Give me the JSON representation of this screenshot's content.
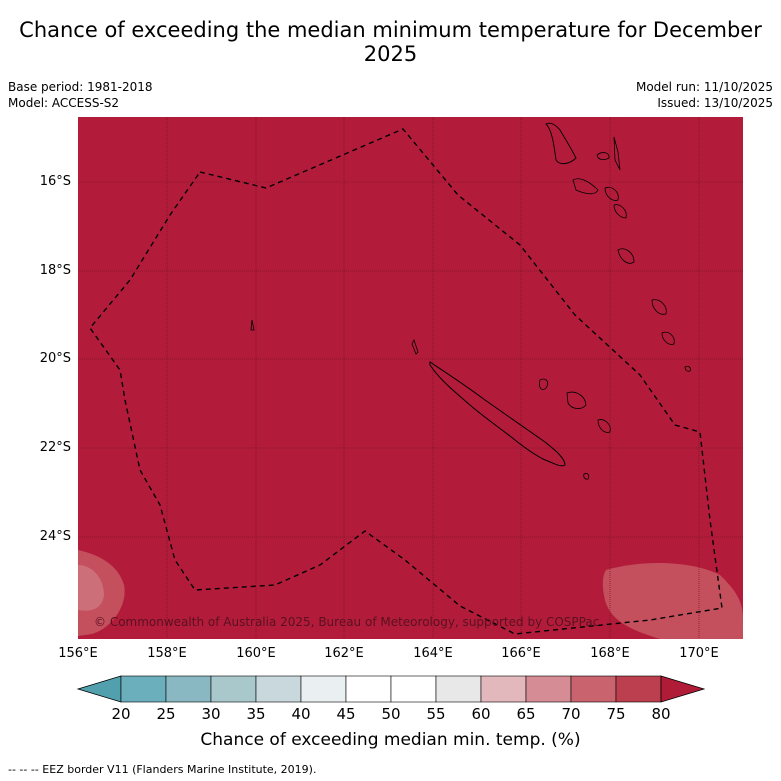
{
  "title": "Chance of exceeding the median minimum temperature for December 2025",
  "base_period": "Base period: 1981-2018",
  "model": "Model: ACCESS-S2",
  "model_run": "Model run: 11/10/2025",
  "issued": "Issued: 13/10/2025",
  "copyright": "© Commonwealth of Australia 2025, Bureau of Meteorology, supported by COSPPac",
  "lat_ticks": [
    "16°S",
    "18°S",
    "20°S",
    "22°S",
    "24°S"
  ],
  "lon_ticks": [
    "156°E",
    "158°E",
    "160°E",
    "162°E",
    "164°E",
    "166°E",
    "168°E",
    "170°E"
  ],
  "colorbar": {
    "title": "Chance of exceeding median min. temp. (%)",
    "labels": [
      "20",
      "25",
      "30",
      "35",
      "40",
      "45",
      "50",
      "55",
      "60",
      "65",
      "70",
      "75",
      "80"
    ],
    "colors": [
      "#52a0ae",
      "#6aafbb",
      "#8ab8c2",
      "#a8c8cc",
      "#c8d8dc",
      "#eaf0f2",
      "#ffffff",
      "#ffffff",
      "#e8e8e8",
      "#e2b8bd",
      "#d68c94",
      "#c9636e",
      "#bb3f4e",
      "#b01c38"
    ]
  },
  "colors": {
    "dominant_fill": "#b21c3a",
    "lighter_patch": "#c4505d"
  },
  "footnote": "-- -- -- EEZ border V11 (Flanders Marine Institute, 2019)."
}
